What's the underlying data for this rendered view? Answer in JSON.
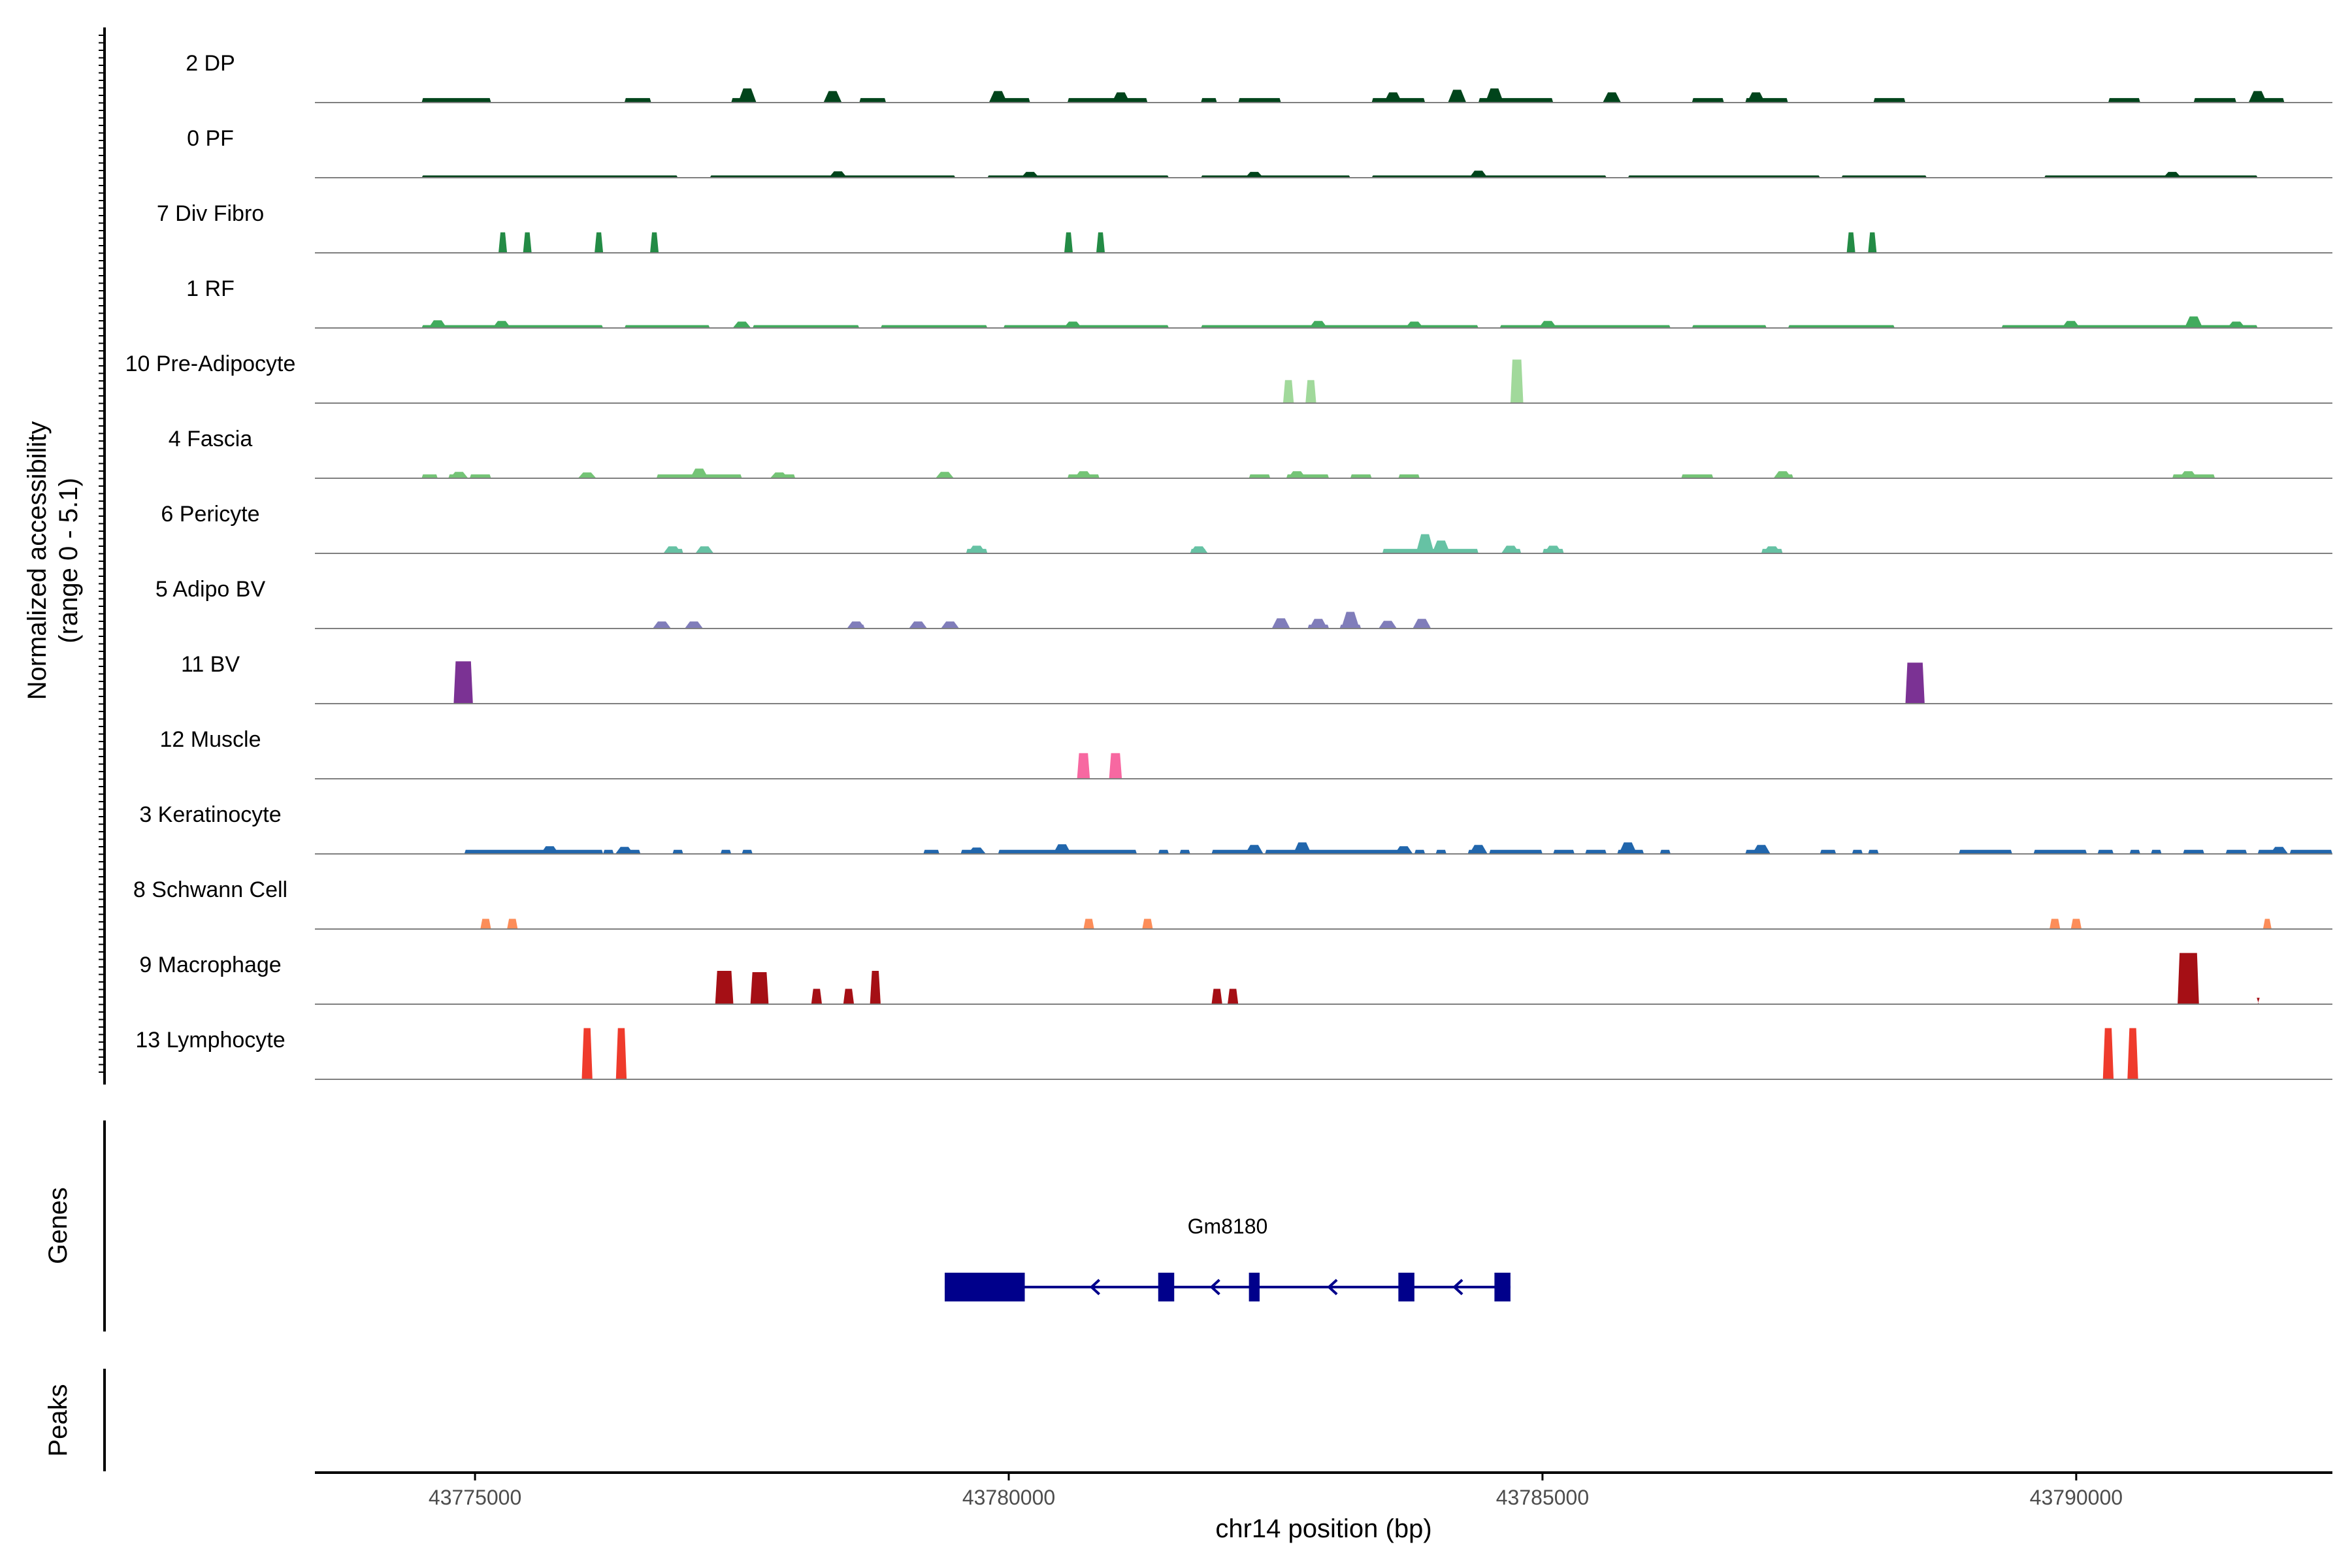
{
  "chart_data": {
    "type": "coverage",
    "chromosome": "chr14",
    "xlabel": "chr14 position (bp)",
    "xlim": [
      43773500,
      43792400
    ],
    "xticks": [
      {
        "value": 43775000,
        "label": "43775000"
      },
      {
        "value": 43780000,
        "label": "43780000"
      },
      {
        "value": 43785000,
        "label": "43785000"
      },
      {
        "value": 43790000,
        "label": "43790000"
      }
    ],
    "ylabel_line1": "Normalized accessibility",
    "ylabel_line2": "(range 0 - 5.1)",
    "ylim": [
      0,
      5.1
    ],
    "panels": {
      "genes": "Genes",
      "peaks": "Peaks"
    },
    "series": [
      {
        "name": "2 DP",
        "color": "#00441b",
        "kind": "bg",
        "base": 0.35,
        "regions": [
          [
            43774500,
            43775150
          ],
          [
            43776400,
            43776650
          ],
          [
            43777400,
            43777600
          ],
          [
            43778600,
            43778850
          ],
          [
            43779900,
            43780200
          ],
          [
            43780550,
            43781300
          ],
          [
            43781800,
            43781950
          ],
          [
            43782150,
            43782550
          ],
          [
            43783400,
            43783900
          ],
          [
            43784400,
            43785100
          ],
          [
            43786400,
            43786700
          ],
          [
            43786900,
            43787300
          ],
          [
            43788100,
            43788400
          ],
          [
            43790300,
            43790600
          ],
          [
            43791100,
            43791500
          ],
          [
            43791650,
            43791950
          ]
        ],
        "peaks": [
          [
            43777550,
            1.1
          ],
          [
            43778350,
            0.9
          ],
          [
            43779900,
            0.9
          ],
          [
            43781050,
            0.8
          ],
          [
            43783600,
            0.8
          ],
          [
            43784200,
            1.0
          ],
          [
            43784550,
            1.1
          ],
          [
            43785650,
            0.8
          ],
          [
            43787000,
            0.8
          ],
          [
            43791700,
            0.9
          ]
        ]
      },
      {
        "name": "0 PF",
        "color": "#00441b",
        "kind": "bg",
        "base": 0.18,
        "regions": [
          [
            43774500,
            43776900
          ],
          [
            43777200,
            43779500
          ],
          [
            43779800,
            43781500
          ],
          [
            43781800,
            43783200
          ],
          [
            43783400,
            43785600
          ],
          [
            43785800,
            43787600
          ],
          [
            43787800,
            43788600
          ],
          [
            43789700,
            43791700
          ]
        ],
        "peaks": [
          [
            43778400,
            0.5
          ],
          [
            43780200,
            0.45
          ],
          [
            43782300,
            0.45
          ],
          [
            43784400,
            0.55
          ],
          [
            43790900,
            0.45
          ]
        ]
      },
      {
        "name": "7 Div Fibro",
        "color": "#238b45",
        "kind": "block",
        "blocks": [
          [
            43775220,
            43775300,
            1.6
          ],
          [
            43775450,
            43775530,
            1.6
          ],
          [
            43776120,
            43776200,
            1.6
          ],
          [
            43776640,
            43776720,
            1.6
          ],
          [
            43780520,
            43780600,
            1.6
          ],
          [
            43780820,
            43780900,
            1.6
          ],
          [
            43787850,
            43787930,
            1.6
          ],
          [
            43788050,
            43788130,
            1.6
          ]
        ]
      },
      {
        "name": "1 RF",
        "color": "#41ab5d",
        "kind": "bg",
        "base": 0.22,
        "regions": [
          [
            43774500,
            43776200
          ],
          [
            43776400,
            43777200
          ],
          [
            43777600,
            43778600
          ],
          [
            43778800,
            43779800
          ],
          [
            43779950,
            43781500
          ],
          [
            43781800,
            43784400
          ],
          [
            43784600,
            43786200
          ],
          [
            43786400,
            43787100
          ],
          [
            43787300,
            43788300
          ],
          [
            43789300,
            43791700
          ]
        ],
        "peaks": [
          [
            43774650,
            0.6
          ],
          [
            43775250,
            0.55
          ],
          [
            43777500,
            0.5
          ],
          [
            43780600,
            0.5
          ],
          [
            43782900,
            0.55
          ],
          [
            43783800,
            0.5
          ],
          [
            43785050,
            0.55
          ],
          [
            43789950,
            0.55
          ],
          [
            43791100,
            0.9
          ],
          [
            43791500,
            0.5
          ]
        ]
      },
      {
        "name": "10 Pre-Adipocyte",
        "color": "#a1d99b",
        "kind": "block",
        "blocks": [
          [
            43782570,
            43782670,
            1.8
          ],
          [
            43782780,
            43782880,
            1.8
          ],
          [
            43784700,
            43784820,
            3.4
          ]
        ]
      },
      {
        "name": "4 Fascia",
        "color": "#74c476",
        "kind": "bg",
        "base": 0.3,
        "regions": [
          [
            43774500,
            43774650
          ],
          [
            43774750,
            43774850
          ],
          [
            43774950,
            43775150
          ],
          [
            43776000,
            43776100
          ],
          [
            43776700,
            43777500
          ],
          [
            43777800,
            43778000
          ],
          [
            43779350,
            43779450
          ],
          [
            43780550,
            43780850
          ],
          [
            43782250,
            43782450
          ],
          [
            43782600,
            43783000
          ],
          [
            43783200,
            43783400
          ],
          [
            43783650,
            43783850
          ],
          [
            43786300,
            43786600
          ],
          [
            43787200,
            43787350
          ],
          [
            43790900,
            43791300
          ]
        ],
        "peaks": [
          [
            43774850,
            0.5
          ],
          [
            43776050,
            0.45
          ],
          [
            43777100,
            0.75
          ],
          [
            43777850,
            0.45
          ],
          [
            43779400,
            0.5
          ],
          [
            43780700,
            0.55
          ],
          [
            43782700,
            0.55
          ],
          [
            43787250,
            0.55
          ],
          [
            43791050,
            0.55
          ]
        ]
      },
      {
        "name": "6 Pericyte",
        "color": "#66c2a4",
        "kind": "bg",
        "base": 0.35,
        "regions": [
          [
            43776800,
            43776950
          ],
          [
            43777100,
            43777200
          ],
          [
            43779600,
            43779800
          ],
          [
            43781700,
            43781850
          ],
          [
            43783500,
            43784400
          ],
          [
            43784650,
            43784800
          ],
          [
            43785000,
            43785200
          ],
          [
            43787050,
            43787250
          ]
        ],
        "peaks": [
          [
            43776850,
            0.55
          ],
          [
            43777150,
            0.55
          ],
          [
            43779700,
            0.6
          ],
          [
            43781780,
            0.55
          ],
          [
            43783900,
            1.5
          ],
          [
            43784050,
            1.0
          ],
          [
            43784700,
            0.6
          ],
          [
            43785100,
            0.6
          ],
          [
            43787150,
            0.55
          ]
        ]
      },
      {
        "name": "5 Adipo BV",
        "color": "#807dba",
        "kind": "bg",
        "base": 0.3,
        "regions": [
          [
            43776700,
            43776800
          ],
          [
            43777000,
            43777100
          ],
          [
            43778500,
            43778650
          ],
          [
            43779100,
            43779200
          ],
          [
            43779400,
            43779500
          ],
          [
            43782500,
            43782600
          ],
          [
            43782800,
            43783000
          ],
          [
            43783100,
            43783300
          ],
          [
            43783500,
            43783600
          ],
          [
            43783800,
            43783950
          ]
        ],
        "peaks": [
          [
            43776750,
            0.55
          ],
          [
            43777050,
            0.55
          ],
          [
            43778570,
            0.55
          ],
          [
            43779150,
            0.55
          ],
          [
            43779450,
            0.55
          ],
          [
            43782550,
            0.8
          ],
          [
            43782900,
            0.75
          ],
          [
            43783200,
            1.3
          ],
          [
            43783550,
            0.6
          ],
          [
            43783870,
            0.75
          ]
        ]
      },
      {
        "name": "11 BV",
        "color": "#7b3294",
        "kind": "block",
        "blocks": [
          [
            43774800,
            43774980,
            3.3
          ],
          [
            43788400,
            43788580,
            3.2
          ]
        ]
      },
      {
        "name": "12 Muscle",
        "color": "#f768a1",
        "kind": "block",
        "blocks": [
          [
            43780640,
            43780760,
            2.0
          ],
          [
            43780940,
            43781060,
            2.0
          ]
        ]
      },
      {
        "name": "3 Keratinocyte",
        "color": "#2166ac",
        "kind": "bg",
        "base": 0.32,
        "regions": [
          [
            43774900,
            43776200
          ],
          [
            43776200,
            43776300
          ],
          [
            43776400,
            43776550
          ],
          [
            43776850,
            43776950
          ],
          [
            43777300,
            43777400
          ],
          [
            43777500,
            43777600
          ],
          [
            43779200,
            43779350
          ],
          [
            43779550,
            43779700
          ],
          [
            43779900,
            43781200
          ],
          [
            43781400,
            43781500
          ],
          [
            43781600,
            43781700
          ],
          [
            43781900,
            43782300
          ],
          [
            43782400,
            43783700
          ],
          [
            43783800,
            43783900
          ],
          [
            43784000,
            43784100
          ],
          [
            43784300,
            43784400
          ],
          [
            43784500,
            43785000
          ],
          [
            43785100,
            43785300
          ],
          [
            43785400,
            43785600
          ],
          [
            43785700,
            43785950
          ],
          [
            43786100,
            43786200
          ],
          [
            43786900,
            43787100
          ],
          [
            43787600,
            43787750
          ],
          [
            43787900,
            43788000
          ],
          [
            43788050,
            43788150
          ],
          [
            43788900,
            43789400
          ],
          [
            43789600,
            43790100
          ],
          [
            43790200,
            43790350
          ],
          [
            43790500,
            43790600
          ],
          [
            43790700,
            43790800
          ],
          [
            43791000,
            43791200
          ],
          [
            43791400,
            43791600
          ],
          [
            43791700,
            43791900
          ],
          [
            43792000,
            43792400
          ]
        ],
        "peaks": [
          [
            43775700,
            0.6
          ],
          [
            43776400,
            0.55
          ],
          [
            43779700,
            0.5
          ],
          [
            43780500,
            0.75
          ],
          [
            43782300,
            0.7
          ],
          [
            43782750,
            0.9
          ],
          [
            43783700,
            0.6
          ],
          [
            43784400,
            0.7
          ],
          [
            43785800,
            0.9
          ],
          [
            43787050,
            0.7
          ],
          [
            43791900,
            0.55
          ]
        ]
      },
      {
        "name": "8 Schwann Cell",
        "color": "#fc8d59",
        "kind": "block",
        "blocks": [
          [
            43775050,
            43775150,
            0.8
          ],
          [
            43775300,
            43775400,
            0.8
          ],
          [
            43780700,
            43780800,
            0.8
          ],
          [
            43781250,
            43781350,
            0.8
          ],
          [
            43789750,
            43789850,
            0.8
          ],
          [
            43789950,
            43790050,
            0.8
          ],
          [
            43791750,
            43791830,
            0.8
          ]
        ]
      },
      {
        "name": "9 Macrophage",
        "color": "#a50f15",
        "kind": "block",
        "blocks": [
          [
            43777250,
            43777420,
            2.6
          ],
          [
            43777580,
            43777750,
            2.5
          ],
          [
            43778150,
            43778250,
            1.2
          ],
          [
            43778450,
            43778550,
            1.2
          ],
          [
            43778700,
            43778800,
            2.6
          ],
          [
            43781900,
            43782000,
            1.2
          ],
          [
            43782050,
            43782150,
            1.2
          ],
          [
            43790950,
            43791150,
            4.0
          ],
          [
            43791700,
            43791710,
            0.5
          ]
        ]
      },
      {
        "name": "13 Lymphocyte",
        "color": "#ef3b2c",
        "kind": "block",
        "blocks": [
          [
            43776000,
            43776100,
            4.0
          ],
          [
            43776320,
            43776420,
            4.0
          ],
          [
            43790250,
            43790350,
            4.0
          ],
          [
            43790480,
            43790580,
            4.0
          ]
        ]
      }
    ],
    "gene": {
      "name": "Gm8180",
      "color": "#00008b",
      "strand": "-",
      "start": 43779400,
      "end": 43784700,
      "exons": [
        [
          43779400,
          43780150
        ],
        [
          43781400,
          43781550
        ],
        [
          43782250,
          43782350
        ],
        [
          43783650,
          43783800
        ],
        [
          43784550,
          43784700
        ]
      ]
    }
  }
}
